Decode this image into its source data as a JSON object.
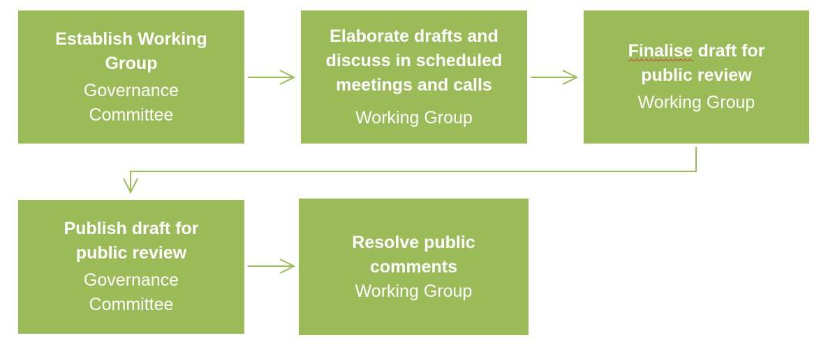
{
  "colors": {
    "box_fill": "#9bbb59",
    "box_text": "#ffffff",
    "connector": "#9bbb59",
    "spellcheck_underline": "#d13438"
  },
  "steps": [
    {
      "title": "Establish Working\nGroup",
      "role": "Governance\nCommittee"
    },
    {
      "title": "Elaborate drafts and\ndiscuss  in scheduled\nmeetings and calls",
      "role": "Working Group"
    },
    {
      "title_first_word": "Finalise",
      "title_rest": " draft for\npublic review",
      "role": "Working Group"
    },
    {
      "title": "Publish draft for\npublic review",
      "role": "Governance\nCommittee"
    },
    {
      "title": "Resolve public\ncomments",
      "role": "Working Group"
    }
  ]
}
